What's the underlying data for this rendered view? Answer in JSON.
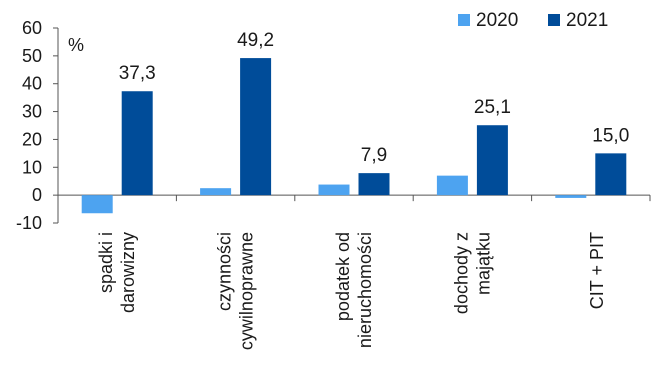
{
  "chart_data": {
    "type": "bar",
    "unit": "%",
    "categories": [
      [
        "spadki i",
        "darowizny"
      ],
      [
        "czynności",
        "cywilnoprawne"
      ],
      [
        "podatek od",
        "nieruchomości"
      ],
      [
        "dochody z",
        "majątku"
      ],
      [
        "CIT + PIT"
      ]
    ],
    "series": [
      {
        "name": "2020",
        "color": "#4da3f0",
        "values": [
          -6.5,
          2.5,
          3.8,
          7.0,
          -1.0
        ],
        "show_labels": false
      },
      {
        "name": "2021",
        "color": "#004c99",
        "values": [
          37.3,
          49.2,
          7.9,
          25.1,
          15.0
        ],
        "labels": [
          "37,3",
          "49,2",
          "7,9",
          "25,1",
          "15,0"
        ],
        "show_labels": true
      }
    ],
    "ylim": [
      -10,
      60
    ],
    "yticks": [
      -10,
      0,
      10,
      20,
      30,
      40,
      50,
      60
    ],
    "ytick_labels": [
      "-10",
      "0",
      "10",
      "20",
      "30",
      "40",
      "50",
      "60"
    ],
    "legend_position": "top-right",
    "grid": false
  }
}
